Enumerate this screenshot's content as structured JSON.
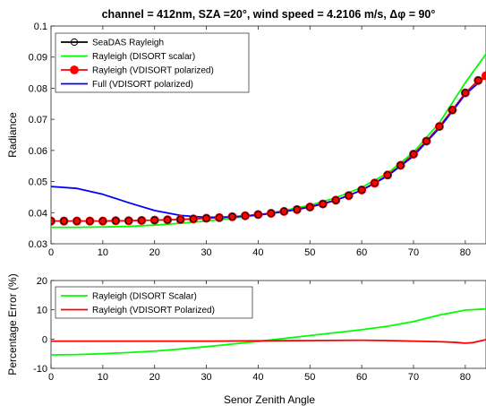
{
  "title": "channel = 412nm, SZA =20°,  wind speed = 4.2106 m/s,  Δφ = 90°",
  "xlabel": "Senor Zenith Angle",
  "chart_data": [
    {
      "type": "line",
      "ylabel": "Radiance",
      "xlim": [
        0,
        84
      ],
      "ylim": [
        0.03,
        0.1
      ],
      "xticks": [
        0,
        10,
        20,
        30,
        40,
        50,
        60,
        70,
        80
      ],
      "yticks": [
        0.03,
        0.04,
        0.05,
        0.06,
        0.07,
        0.08,
        0.09,
        0.1
      ],
      "ytick_labels": [
        "0.03",
        "0.04",
        "0.05",
        "0.06",
        "0.07",
        "0.08",
        "0.09",
        "0.1"
      ],
      "grid": false,
      "legend_position": "top-left",
      "series": [
        {
          "name": "SeaDAS Rayleigh",
          "color": "#000000",
          "marker": "circle-open",
          "x": [
            0,
            2.5,
            5,
            7.5,
            10,
            12.5,
            15,
            17.5,
            20,
            22.5,
            25,
            27.5,
            30,
            32.5,
            35,
            37.5,
            40,
            42.5,
            45,
            47.5,
            50,
            52.5,
            55,
            57.5,
            60,
            62.5,
            65,
            67.5,
            70,
            72.5,
            75,
            77.5,
            80,
            82.5
          ],
          "y": [
            0.0373,
            0.0373,
            0.0373,
            0.0373,
            0.0373,
            0.0374,
            0.0374,
            0.0375,
            0.0376,
            0.0377,
            0.0378,
            0.038,
            0.0382,
            0.0384,
            0.0387,
            0.039,
            0.0394,
            0.0398,
            0.0404,
            0.041,
            0.0418,
            0.0428,
            0.044,
            0.0455,
            0.0473,
            0.0495,
            0.0521,
            0.0552,
            0.0588,
            0.063,
            0.0677,
            0.073,
            0.0785,
            0.0825
          ]
        },
        {
          "name": "Rayleigh (DISORT scalar)",
          "color": "#00ff00",
          "x": [
            0,
            5,
            10,
            15,
            20,
            25,
            30,
            35,
            40,
            45,
            50,
            55,
            60,
            65,
            70,
            75,
            80,
            84
          ],
          "y": [
            0.0353,
            0.0353,
            0.0354,
            0.0356,
            0.036,
            0.0366,
            0.0373,
            0.0382,
            0.0393,
            0.0407,
            0.0424,
            0.0448,
            0.0481,
            0.0527,
            0.0594,
            0.0689,
            0.0818,
            0.091
          ]
        },
        {
          "name": "Rayleigh (VDISORT polarized)",
          "color": "#ff0000",
          "marker": "circle-filled",
          "x": [
            0,
            2.5,
            5,
            7.5,
            10,
            12.5,
            15,
            17.5,
            20,
            22.5,
            25,
            27.5,
            30,
            32.5,
            35,
            37.5,
            40,
            42.5,
            45,
            47.5,
            50,
            52.5,
            55,
            57.5,
            60,
            62.5,
            65,
            67.5,
            70,
            72.5,
            75,
            77.5,
            80,
            82.5,
            84
          ],
          "y": [
            0.0373,
            0.0373,
            0.0373,
            0.0373,
            0.0373,
            0.0374,
            0.0374,
            0.0375,
            0.0376,
            0.0377,
            0.0378,
            0.038,
            0.0382,
            0.0384,
            0.0387,
            0.039,
            0.0394,
            0.0398,
            0.0404,
            0.041,
            0.0418,
            0.0428,
            0.044,
            0.0455,
            0.0473,
            0.0495,
            0.0521,
            0.0552,
            0.0588,
            0.063,
            0.0677,
            0.073,
            0.0785,
            0.0825,
            0.084
          ]
        },
        {
          "name": "Full (VDISORT polarized)",
          "color": "#0000ff",
          "x": [
            0,
            5,
            10,
            15,
            20,
            25,
            30,
            35,
            40,
            45,
            50,
            55,
            60,
            65,
            70,
            75,
            80,
            84
          ],
          "y": [
            0.0484,
            0.0478,
            0.0459,
            0.0432,
            0.0407,
            0.0391,
            0.0385,
            0.0386,
            0.0392,
            0.0403,
            0.0419,
            0.044,
            0.0472,
            0.0518,
            0.0582,
            0.0672,
            0.078,
            0.0838
          ]
        }
      ]
    },
    {
      "type": "line",
      "ylabel": "Percentage Error (%)",
      "xlim": [
        0,
        84
      ],
      "ylim": [
        -10,
        20
      ],
      "xticks": [
        0,
        10,
        20,
        30,
        40,
        50,
        60,
        70,
        80
      ],
      "yticks": [
        -10,
        0,
        10,
        20
      ],
      "ytick_labels": [
        "-10",
        "0",
        "10",
        "20"
      ],
      "grid": false,
      "legend_position": "top-left",
      "series": [
        {
          "name": "Rayleigh (DISORT Scalar)",
          "color": "#00ff00",
          "x": [
            0,
            5,
            10,
            15,
            20,
            25,
            30,
            35,
            40,
            45,
            50,
            55,
            60,
            65,
            70,
            75,
            80,
            84
          ],
          "y": [
            -5.4,
            -5.3,
            -5.0,
            -4.6,
            -4.1,
            -3.4,
            -2.6,
            -1.7,
            -0.8,
            0.2,
            1.2,
            2.2,
            3.2,
            4.4,
            6.0,
            8.2,
            9.9,
            10.3
          ]
        },
        {
          "name": "Rayleigh (VDISORT Polarized)",
          "color": "#ff0000",
          "x": [
            0,
            10,
            20,
            30,
            40,
            50,
            60,
            65,
            70,
            75,
            78,
            80,
            81.5,
            83,
            84
          ],
          "y": [
            -0.7,
            -0.7,
            -0.7,
            -0.7,
            -0.6,
            -0.5,
            -0.4,
            -0.5,
            -0.7,
            -0.9,
            -1.1,
            -1.4,
            -1.2,
            -0.6,
            -0.2
          ]
        }
      ]
    }
  ]
}
